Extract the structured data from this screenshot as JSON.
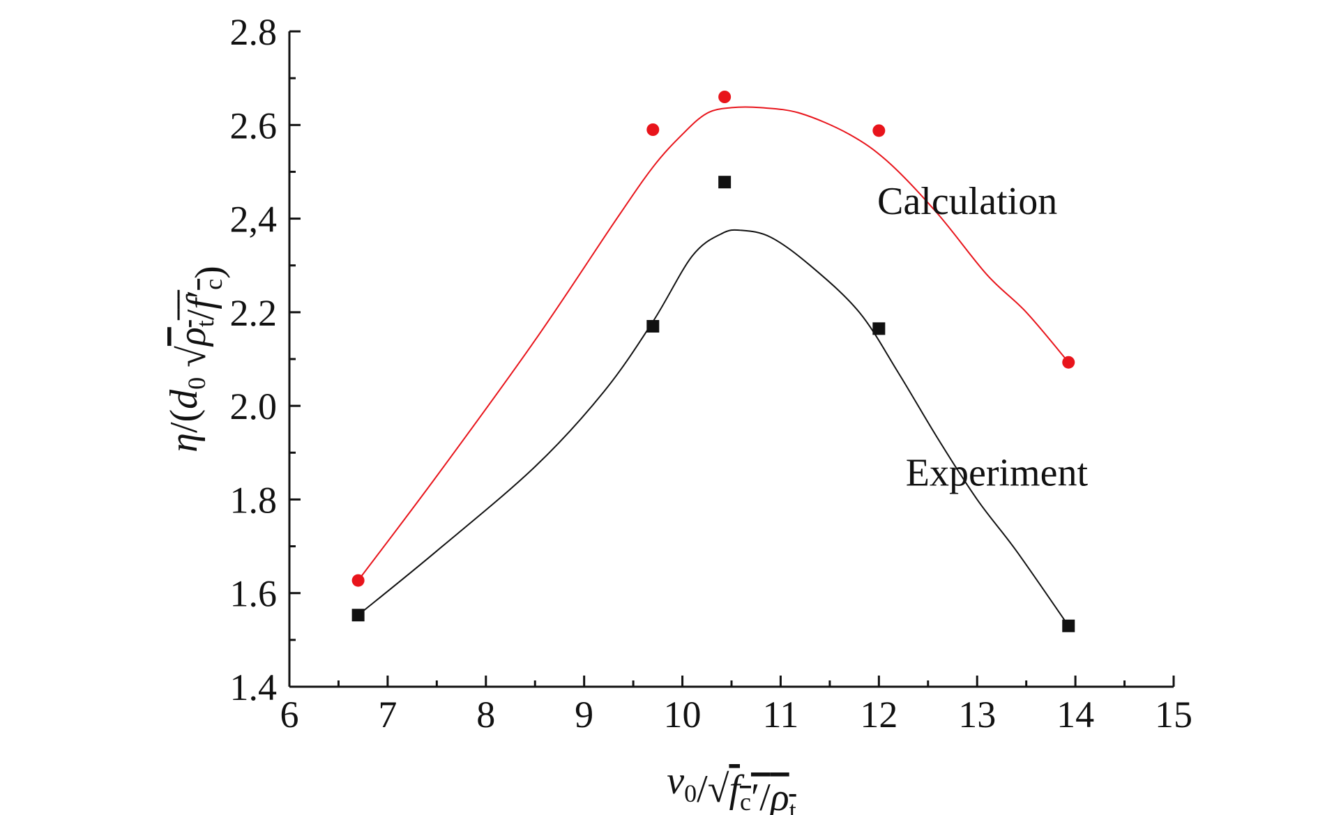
{
  "chart_data": {
    "type": "scatter",
    "title": "",
    "xlabel": {
      "parts": [
        {
          "t": "v",
          "style": "italic"
        },
        {
          "t": "0",
          "style": "sub"
        },
        {
          "t": "/√",
          "style": "normal"
        },
        {
          "t": "f",
          "style": "italic-over"
        },
        {
          "t": "c",
          "style": "sub-over"
        },
        {
          "t": "′/",
          "style": "normal-over"
        },
        {
          "t": "ρ",
          "style": "italic-over"
        },
        {
          "t": "t",
          "style": "sub-over"
        }
      ]
    },
    "ylabel": {
      "parts": [
        {
          "t": "η",
          "style": "italic"
        },
        {
          "t": "/(",
          "style": "normal"
        },
        {
          "t": "d",
          "style": "italic"
        },
        {
          "t": "0",
          "style": "sub"
        },
        {
          "t": " √",
          "style": "normal"
        },
        {
          "t": "ρ",
          "style": "italic-over"
        },
        {
          "t": "t",
          "style": "sub-over"
        },
        {
          "t": "/",
          "style": "normal-over"
        },
        {
          "t": "f",
          "style": "italic-over"
        },
        {
          "t": "′",
          "style": "normal-over"
        },
        {
          "t": "c",
          "style": "sub-over"
        },
        {
          "t": ")",
          "style": "normal"
        }
      ]
    },
    "xlim": [
      6,
      15
    ],
    "ylim": [
      1.4,
      2.8
    ],
    "x_ticks": [
      6,
      7,
      8,
      9,
      10,
      11,
      12,
      13,
      14,
      15
    ],
    "x_tick_labels": [
      "6",
      "7",
      "8",
      "9",
      "10",
      "11",
      "12",
      "13",
      "14",
      "15"
    ],
    "y_ticks": [
      1.4,
      1.6,
      1.8,
      2.0,
      2.2,
      2.4,
      2.6,
      2.8
    ],
    "y_tick_labels": [
      "1.4",
      "1.6",
      "1.8",
      "2.0",
      "2.2",
      "2,4",
      "2.6",
      "2.8"
    ],
    "grid": false,
    "legend": "none",
    "series": [
      {
        "name": "Calculation",
        "marker": "circle",
        "color": "#e8141b",
        "points": [
          {
            "x": 6.7,
            "y": 1.627
          },
          {
            "x": 9.7,
            "y": 2.59
          },
          {
            "x": 10.43,
            "y": 2.66
          },
          {
            "x": 12.0,
            "y": 2.588
          },
          {
            "x": 13.93,
            "y": 2.093
          }
        ],
        "fit": {
          "x": [
            6.7,
            7.5,
            8.5,
            9.3,
            9.7,
            10.0,
            10.25,
            10.5,
            10.8,
            11.2,
            11.7,
            12.1,
            12.6,
            13.1,
            13.5,
            13.93
          ],
          "y": [
            1.627,
            1.85,
            2.14,
            2.39,
            2.51,
            2.58,
            2.625,
            2.637,
            2.637,
            2.625,
            2.58,
            2.52,
            2.41,
            2.28,
            2.2,
            2.093
          ]
        }
      },
      {
        "name": "Experiment",
        "marker": "square",
        "color": "#111111",
        "points": [
          {
            "x": 6.7,
            "y": 1.553
          },
          {
            "x": 9.7,
            "y": 2.17
          },
          {
            "x": 10.43,
            "y": 2.478
          },
          {
            "x": 12.0,
            "y": 2.165
          },
          {
            "x": 13.93,
            "y": 1.53
          }
        ],
        "fit": {
          "x": [
            6.7,
            7.5,
            8.5,
            9.2,
            9.7,
            10.1,
            10.4,
            10.6,
            10.9,
            11.3,
            11.8,
            12.2,
            12.6,
            13.0,
            13.4,
            13.93
          ],
          "y": [
            1.553,
            1.69,
            1.87,
            2.03,
            2.18,
            2.32,
            2.368,
            2.375,
            2.36,
            2.3,
            2.2,
            2.07,
            1.93,
            1.8,
            1.69,
            1.53
          ]
        }
      }
    ],
    "annotations": [
      {
        "text": "Calculation",
        "series": 0,
        "at": {
          "x": 12.9,
          "y": 2.41
        }
      },
      {
        "text": "Experiment",
        "series": 1,
        "at": {
          "x": 13.2,
          "y": 1.83
        }
      }
    ]
  }
}
